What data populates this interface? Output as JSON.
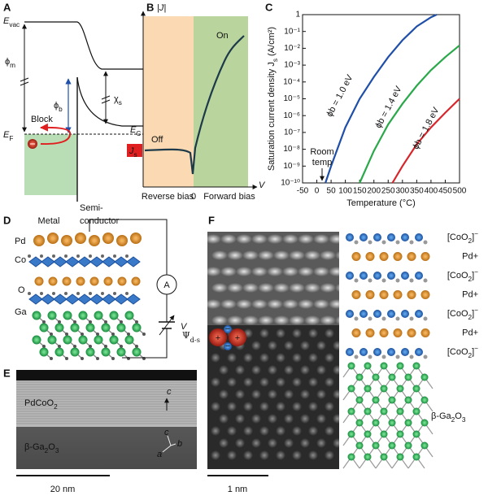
{
  "panels": {
    "A": {
      "letter": "A",
      "evac": [
        "E",
        "vac"
      ],
      "phim": [
        "ϕ",
        "m"
      ],
      "phib": [
        "ϕ",
        "b"
      ],
      "chis": [
        "χ",
        "s"
      ],
      "block": "Block",
      "ef": [
        "E",
        "F"
      ],
      "ec": [
        "E",
        "C"
      ],
      "metal": "Metal",
      "semi": [
        "Semi-",
        "conductor"
      ]
    },
    "B": {
      "letter": "B",
      "j": "|J|",
      "on": "On",
      "off": "Off",
      "js": [
        "J",
        "s"
      ],
      "v": "V",
      "zero": "0",
      "reverse": "Reverse bias",
      "forward": "Forward bias"
    },
    "C": {
      "letter": "C"
    },
    "D": {
      "letter": "D",
      "pd": "Pd",
      "co": "Co",
      "o": "O",
      "ga": "Ga",
      "ammeter": "A",
      "v": "V"
    },
    "E": {
      "letter": "E",
      "top": [
        "PdCoO",
        "2"
      ],
      "bottom": [
        "β-Ga",
        "2",
        "O",
        "3"
      ],
      "c1": "c",
      "c2": "c",
      "a": "a",
      "b": "b",
      "scale": "20 nm"
    },
    "F": {
      "letter": "F",
      "psi": [
        "Ψ",
        "d-s"
      ],
      "plus": "+",
      "minus": "−",
      "layers": [
        [
          "[CoO",
          "2",
          "]",
          "−"
        ],
        [
          "Pd+"
        ],
        [
          "[CoO",
          "2",
          "]",
          "−"
        ],
        [
          "Pd+"
        ],
        [
          "[CoO",
          "2",
          "]",
          "−"
        ],
        [
          "Pd+"
        ],
        [
          "[CoO",
          "2",
          "]",
          "−"
        ]
      ],
      "ga": [
        "β-Ga",
        "2",
        "O",
        "3"
      ],
      "scale": "1 nm"
    }
  },
  "chart_data": {
    "type": "line",
    "xlabel": "Temperature (°C)",
    "ylabel": [
      "Saturation current density J",
      "s",
      " (A/cm²)"
    ],
    "annotation": [
      "Room",
      "temp"
    ],
    "xlim": [
      -50,
      500
    ],
    "xticks": [
      -50,
      0,
      50,
      100,
      150,
      200,
      250,
      300,
      350,
      400,
      450,
      500
    ],
    "ylog": true,
    "ylim": [
      1e-10,
      1
    ],
    "yticks": [
      {
        "value": 1e-10,
        "label": "10⁻¹⁰"
      },
      {
        "value": 1e-09,
        "label": "10⁻⁹"
      },
      {
        "value": 1e-08,
        "label": "10⁻⁸"
      },
      {
        "value": 1e-07,
        "label": "10⁻⁷"
      },
      {
        "value": 1e-06,
        "label": "10⁻⁶"
      },
      {
        "value": 1e-05,
        "label": "10⁻⁵"
      },
      {
        "value": 0.0001,
        "label": "10⁻⁴"
      },
      {
        "value": 0.001,
        "label": "10⁻³"
      },
      {
        "value": 0.01,
        "label": "10⁻²"
      },
      {
        "value": 0.1,
        "label": "10⁻¹"
      },
      1
    ],
    "series": [
      {
        "name": "ϕb = 1.0 eV",
        "color": "#1f4fa8",
        "x": [
          30,
          50,
          100,
          150,
          200,
          250,
          300,
          350,
          400,
          420
        ],
        "values": [
          1e-10,
          1e-09,
          2e-07,
          1e-05,
          0.0002,
          0.003,
          0.03,
          0.2,
          0.7,
          1
        ]
      },
      {
        "name": "ϕb = 1.4 eV",
        "color": "#2aa84a",
        "x": [
          150,
          200,
          250,
          300,
          350,
          400,
          450,
          500
        ],
        "values": [
          1e-10,
          8e-09,
          3e-07,
          5e-06,
          6e-05,
          0.0005,
          0.003,
          0.015
        ]
      },
      {
        "name": "ϕb = 1.8 eV",
        "color": "#d7262b",
        "x": [
          265,
          300,
          350,
          400,
          450,
          500
        ],
        "values": [
          1e-10,
          1e-09,
          2e-08,
          2e-07,
          1.5e-06,
          1e-05
        ]
      }
    ]
  }
}
